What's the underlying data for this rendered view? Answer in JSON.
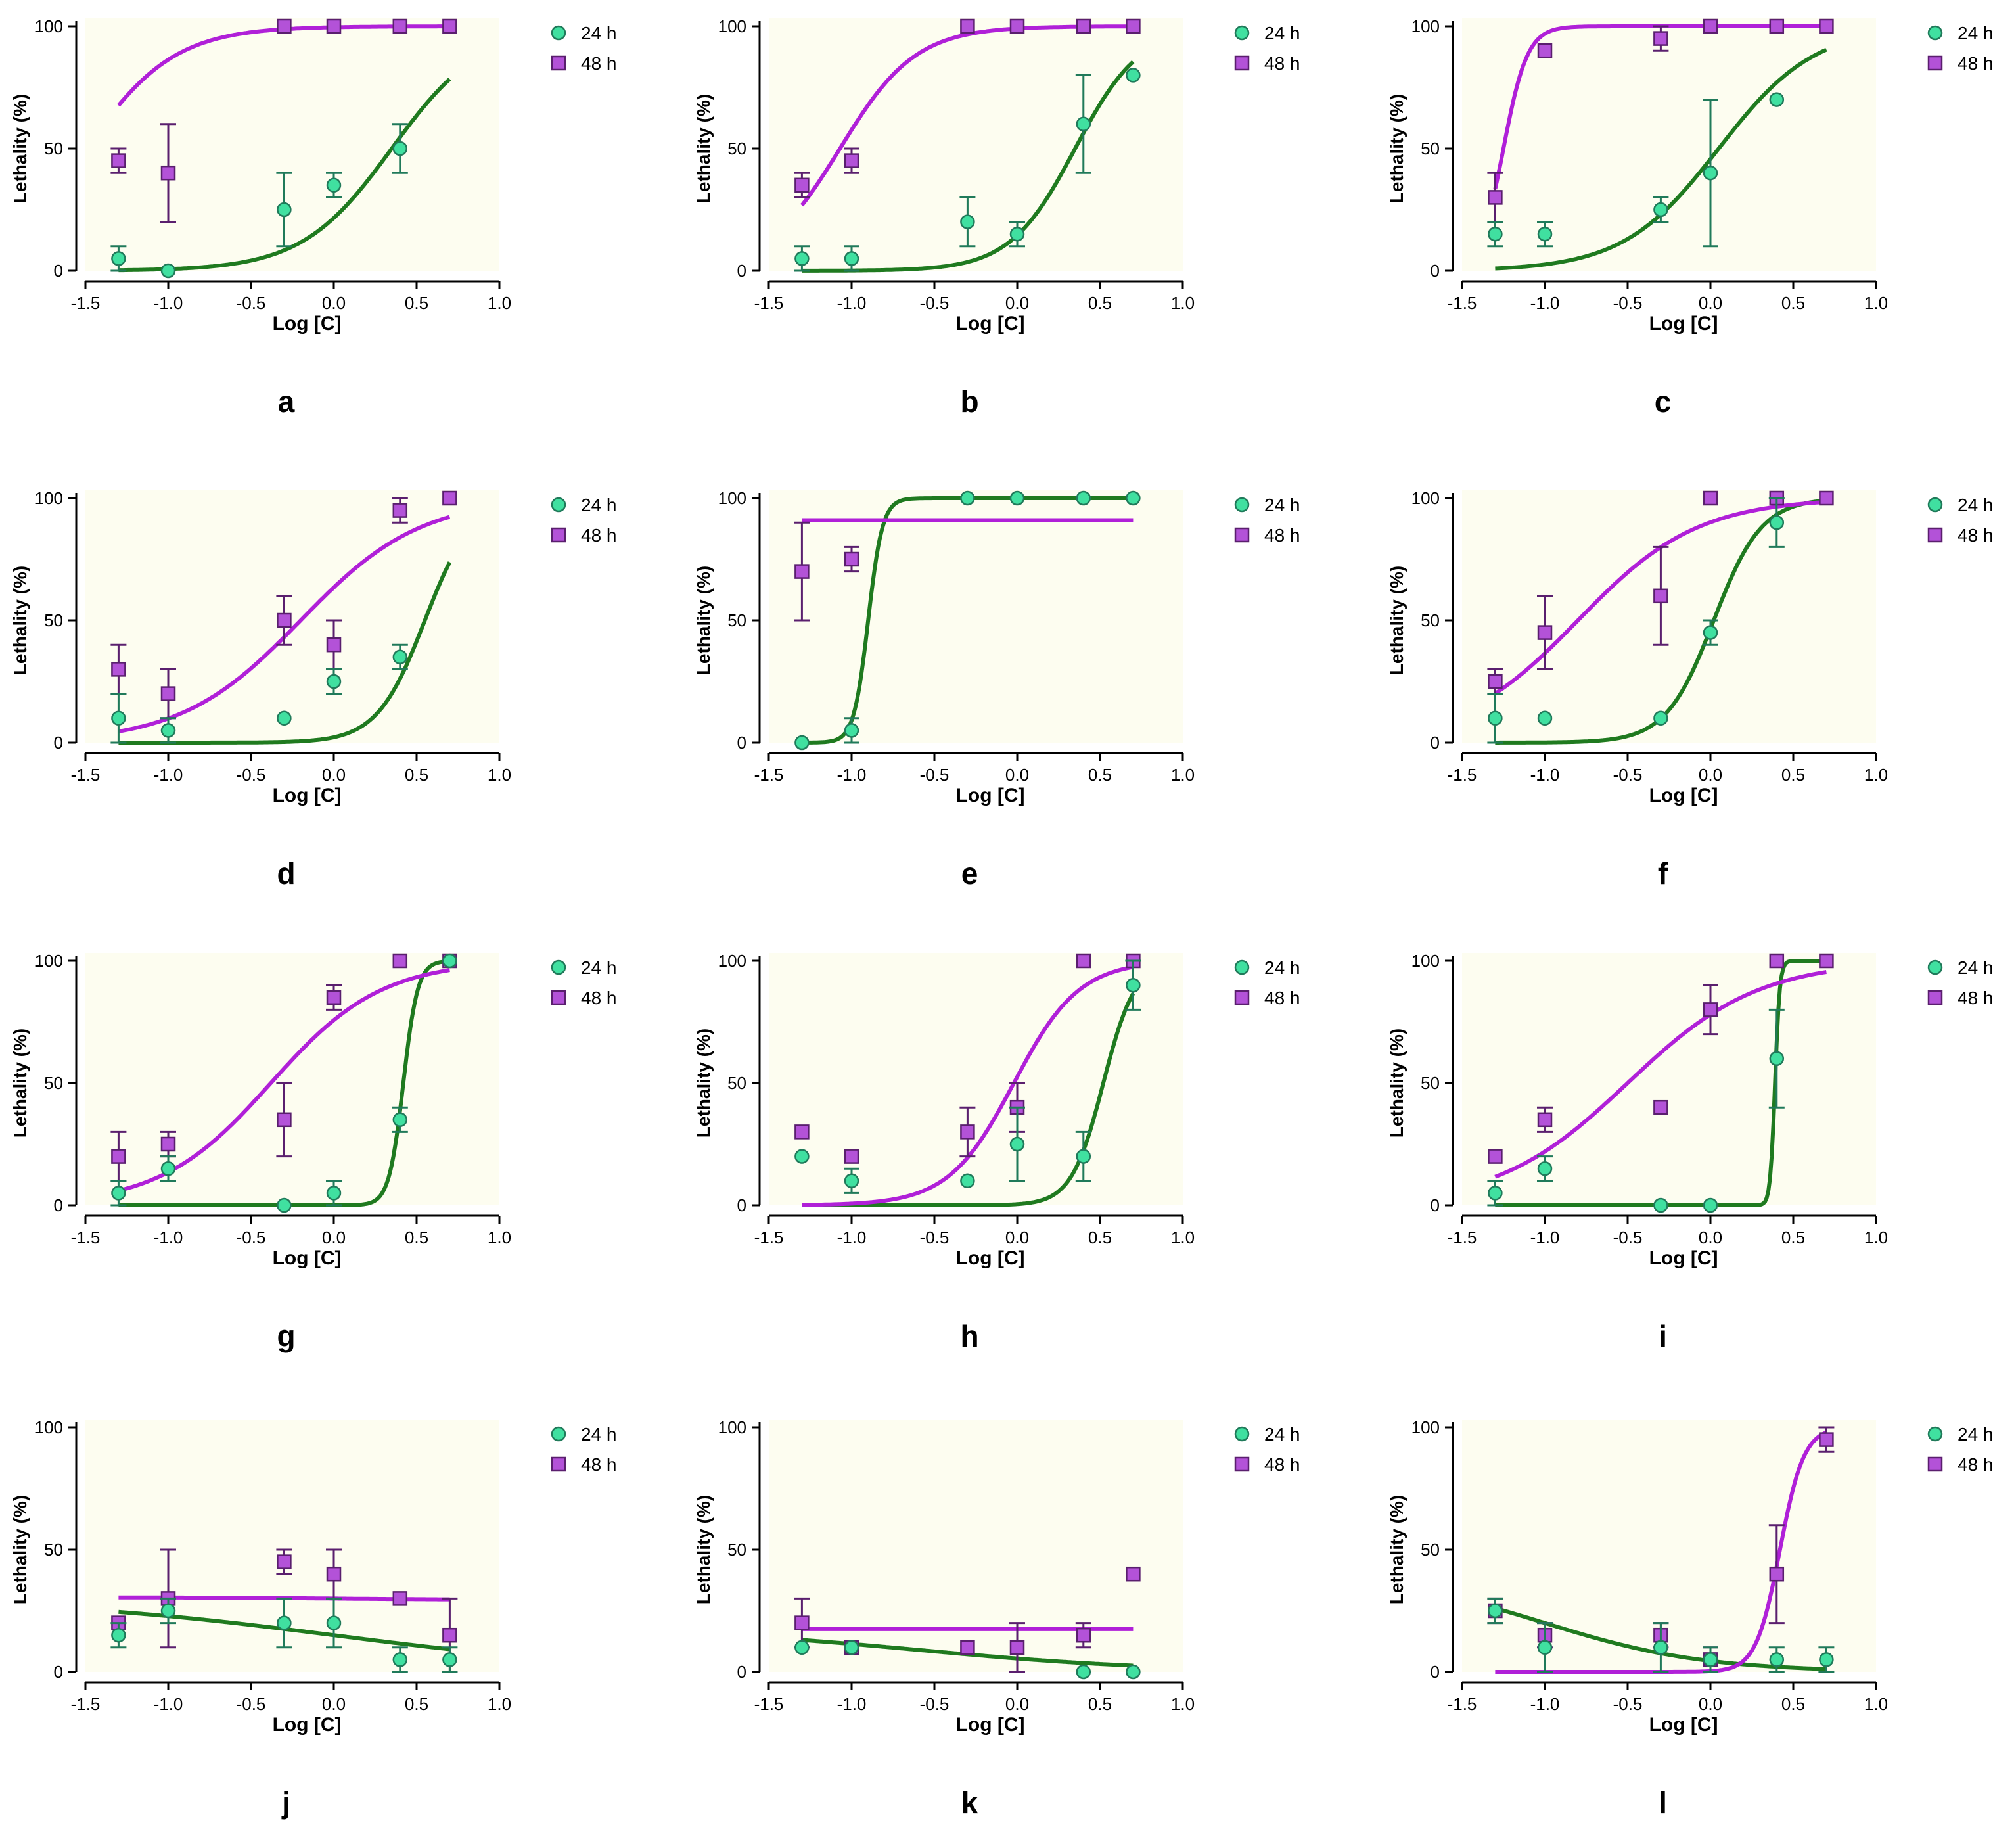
{
  "figure": {
    "legend_24h": "24 h",
    "legend_48h": "48 h"
  },
  "colors": {
    "plot_bg": "#fdfdf0",
    "series_24h_fill": "#40e0a0",
    "series_24h_edge": "#207a5a",
    "fit_24h": "#1f7a1f",
    "series_48h_fill": "#b352d8",
    "series_48h_edge": "#5a1f6e",
    "fit_48h": "#b020d8"
  },
  "chart_data": [
    {
      "panel": "a",
      "type": "scatter",
      "xlabel": "Log [C]",
      "ylabel": "Lethality (%)",
      "xlim": [
        -1.5,
        1.0
      ],
      "ylim": [
        0,
        100
      ],
      "xticks": [
        "-1.5",
        "-1.0",
        "-0.5",
        "0.0",
        "0.5",
        "1.0"
      ],
      "yticks": [
        "0",
        "50",
        "100"
      ],
      "series": [
        {
          "name": "24 h",
          "x": [
            -1.3,
            -1.0,
            -0.3,
            0.0,
            0.4
          ],
          "y": [
            5,
            0,
            25,
            35,
            50
          ],
          "err": [
            5,
            0,
            15,
            5,
            10
          ],
          "fit": {
            "bottom": 0,
            "top": 100,
            "logEC50": 0.35,
            "hill": 1.6
          }
        },
        {
          "name": "48 h",
          "x": [
            -1.3,
            -1.0,
            -0.3,
            0.0,
            0.4,
            0.7
          ],
          "y": [
            45,
            40,
            100,
            100,
            100,
            100
          ],
          "err": [
            5,
            20,
            0,
            0,
            0,
            0
          ],
          "fit": {
            "bottom": 0,
            "top": 100,
            "logEC50": -1.5,
            "hill": 1.6
          }
        }
      ]
    },
    {
      "panel": "b",
      "type": "scatter",
      "xlabel": "Log [C]",
      "ylabel": "Lethality (%)",
      "xlim": [
        -1.5,
        1.0
      ],
      "ylim": [
        0,
        100
      ],
      "xticks": [
        "-1.5",
        "-1.0",
        "-0.5",
        "0.0",
        "0.5",
        "1.0"
      ],
      "yticks": [
        "0",
        "50",
        "100"
      ],
      "series": [
        {
          "name": "24 h",
          "x": [
            -1.3,
            -1.0,
            -0.3,
            0.0,
            0.4,
            0.7
          ],
          "y": [
            5,
            5,
            20,
            15,
            60,
            80
          ],
          "err": [
            5,
            5,
            10,
            5,
            20,
            0
          ],
          "fit": {
            "bottom": 0,
            "top": 100,
            "logEC50": 0.35,
            "hill": 2.2
          }
        },
        {
          "name": "48 h",
          "x": [
            -1.3,
            -1.0,
            -0.3,
            0.0,
            0.4,
            0.7
          ],
          "y": [
            35,
            45,
            100,
            100,
            100,
            100
          ],
          "err": [
            5,
            5,
            0,
            0,
            0,
            0
          ],
          "fit": {
            "bottom": 0,
            "top": 100,
            "logEC50": -1.07,
            "hill": 1.9
          }
        }
      ]
    },
    {
      "panel": "c",
      "type": "scatter",
      "xlabel": "Log [C]",
      "ylabel": "Lethality (%)",
      "xlim": [
        -1.5,
        1.0
      ],
      "ylim": [
        0,
        100
      ],
      "xticks": [
        "-1.5",
        "-1.0",
        "-0.5",
        "0.0",
        "0.5",
        "1.0"
      ],
      "yticks": [
        "0",
        "50",
        "100"
      ],
      "series": [
        {
          "name": "24 h",
          "x": [
            -1.3,
            -1.0,
            -0.3,
            0.0,
            0.4
          ],
          "y": [
            15,
            15,
            25,
            40,
            70
          ],
          "err": [
            5,
            5,
            5,
            30,
            0
          ],
          "fit": {
            "bottom": 0,
            "top": 100,
            "logEC50": 0.05,
            "hill": 1.5
          }
        },
        {
          "name": "48 h",
          "x": [
            -1.3,
            -1.0,
            -0.3,
            0.0,
            0.4,
            0.7
          ],
          "y": [
            30,
            90,
            95,
            100,
            100,
            100
          ],
          "err": [
            10,
            0,
            5,
            0,
            0,
            0
          ],
          "fit": {
            "bottom": 0,
            "top": 100,
            "logEC50": -1.25,
            "hill": 6
          }
        }
      ]
    },
    {
      "panel": "d",
      "type": "scatter",
      "xlabel": "Log [C]",
      "ylabel": "Lethality (%)",
      "xlim": [
        -1.5,
        1.0
      ],
      "ylim": [
        0,
        100
      ],
      "xticks": [
        "-1.5",
        "-1.0",
        "-0.5",
        "0.0",
        "0.5",
        "1.0"
      ],
      "yticks": [
        "0",
        "50",
        "100"
      ],
      "series": [
        {
          "name": "24 h",
          "x": [
            -1.3,
            -1.0,
            -0.3,
            0.0,
            0.4
          ],
          "y": [
            10,
            5,
            10,
            25,
            35
          ],
          "err": [
            10,
            5,
            0,
            5,
            5
          ],
          "fit": {
            "bottom": 0,
            "top": 100,
            "logEC50": 0.55,
            "hill": 3
          }
        },
        {
          "name": "48 h",
          "x": [
            -1.3,
            -1.0,
            -0.3,
            0.0,
            0.4,
            0.7
          ],
          "y": [
            30,
            20,
            50,
            40,
            95,
            100
          ],
          "err": [
            10,
            10,
            10,
            10,
            5,
            0
          ],
          "fit": {
            "bottom": 0,
            "top": 100,
            "logEC50": -0.2,
            "hill": 1.2
          }
        }
      ]
    },
    {
      "panel": "e",
      "type": "scatter",
      "xlabel": "Log [C]",
      "ylabel": "Lethality (%)",
      "xlim": [
        -1.5,
        1.0
      ],
      "ylim": [
        0,
        100
      ],
      "xticks": [
        "-1.5",
        "-1.0",
        "-0.5",
        "0.0",
        "0.5",
        "1.0"
      ],
      "yticks": [
        "0",
        "50",
        "100"
      ],
      "series": [
        {
          "name": "24 h",
          "x": [
            -1.3,
            -1.0,
            -0.3,
            0.0,
            0.4,
            0.7
          ],
          "y": [
            0,
            5,
            100,
            100,
            100,
            100
          ],
          "err": [
            0,
            5,
            0,
            0,
            0,
            0
          ],
          "fit": {
            "bottom": 0,
            "top": 100,
            "logEC50": -0.9,
            "hill": 10
          }
        },
        {
          "name": "48 h",
          "x": [
            -1.3,
            -1.0
          ],
          "y": [
            70,
            75
          ],
          "err": [
            20,
            5
          ],
          "fit": {
            "bottom": 91,
            "top": 91,
            "logEC50": 0,
            "hill": 1
          }
        }
      ]
    },
    {
      "panel": "f",
      "type": "scatter",
      "xlabel": "Log [C]",
      "ylabel": "Lethality (%)",
      "xlim": [
        -1.5,
        1.0
      ],
      "ylim": [
        0,
        100
      ],
      "xticks": [
        "-1.5",
        "-1.0",
        "-0.5",
        "0.0",
        "0.5",
        "1.0"
      ],
      "yticks": [
        "0",
        "50",
        "100"
      ],
      "series": [
        {
          "name": "24 h",
          "x": [
            -1.3,
            -1.0,
            -0.3,
            0.0,
            0.4
          ],
          "y": [
            10,
            10,
            10,
            45,
            90
          ],
          "err": [
            10,
            0,
            0,
            5,
            10
          ],
          "fit": {
            "bottom": 0,
            "top": 100,
            "logEC50": 0.02,
            "hill": 3
          }
        },
        {
          "name": "48 h",
          "x": [
            -1.3,
            -1.0,
            -0.3,
            0.0,
            0.4,
            0.7
          ],
          "y": [
            25,
            45,
            60,
            100,
            100,
            100
          ],
          "err": [
            5,
            15,
            20,
            0,
            0,
            0
          ],
          "fit": {
            "bottom": 0,
            "top": 100,
            "logEC50": -0.8,
            "hill": 1.2
          }
        }
      ]
    },
    {
      "panel": "g",
      "type": "scatter",
      "xlabel": "Log [C]",
      "ylabel": "Lethality (%)",
      "xlim": [
        -1.5,
        1.0
      ],
      "ylim": [
        0,
        100
      ],
      "xticks": [
        "-1.5",
        "-1.0",
        "-0.5",
        "0.0",
        "0.5",
        "1.0"
      ],
      "yticks": [
        "0",
        "50",
        "100"
      ],
      "series": [
        {
          "name": "24 h",
          "x": [
            -1.3,
            -1.0,
            -0.3,
            0.0,
            0.4,
            0.7
          ],
          "y": [
            5,
            15,
            0,
            5,
            35,
            100
          ],
          "err": [
            5,
            5,
            0,
            5,
            5,
            0
          ],
          "fit": {
            "bottom": 0,
            "top": 100,
            "logEC50": 0.42,
            "hill": 10
          }
        },
        {
          "name": "48 h",
          "x": [
            -1.3,
            -1.0,
            -0.3,
            0.0,
            0.4,
            0.7
          ],
          "y": [
            20,
            25,
            35,
            85,
            100,
            100
          ],
          "err": [
            10,
            5,
            15,
            5,
            0,
            0
          ],
          "fit": {
            "bottom": 0,
            "top": 100,
            "logEC50": -0.38,
            "hill": 1.3
          }
        }
      ]
    },
    {
      "panel": "h",
      "type": "scatter",
      "xlabel": "Log [C]",
      "ylabel": "Lethality (%)",
      "xlim": [
        -1.5,
        1.0
      ],
      "ylim": [
        0,
        100
      ],
      "xticks": [
        "-1.5",
        "-1.0",
        "-0.5",
        "0.0",
        "0.5",
        "1.0"
      ],
      "yticks": [
        "0",
        "50",
        "100"
      ],
      "series": [
        {
          "name": "24 h",
          "x": [
            -1.3,
            -1.0,
            -0.3,
            0.0,
            0.4,
            0.7
          ],
          "y": [
            20,
            10,
            10,
            25,
            20,
            90
          ],
          "err": [
            0,
            5,
            0,
            15,
            10,
            10
          ],
          "fit": {
            "bottom": 0,
            "top": 100,
            "logEC50": 0.52,
            "hill": 4.5
          }
        },
        {
          "name": "48 h",
          "x": [
            -1.3,
            -1.0,
            -0.3,
            0.0,
            0.4,
            0.7
          ],
          "y": [
            30,
            20,
            30,
            40,
            100,
            100
          ],
          "err": [
            0,
            0,
            10,
            10,
            0,
            0
          ],
          "fit": {
            "bottom": 0,
            "top": 100,
            "logEC50": -0.02,
            "hill": 2.2
          }
        }
      ]
    },
    {
      "panel": "i",
      "type": "scatter",
      "xlabel": "Log [C]",
      "ylabel": "Lethality (%)",
      "xlim": [
        -1.5,
        1.0
      ],
      "ylim": [
        0,
        100
      ],
      "xticks": [
        "-1.5",
        "-1.0",
        "-0.5",
        "0.0",
        "0.5",
        "1.0"
      ],
      "yticks": [
        "0",
        "50",
        "100"
      ],
      "series": [
        {
          "name": "24 h",
          "x": [
            -1.3,
            -1.0,
            -0.3,
            0.0,
            0.4
          ],
          "y": [
            5,
            15,
            0,
            0,
            60
          ],
          "err": [
            5,
            5,
            0,
            0,
            20
          ],
          "fit": {
            "bottom": 0,
            "top": 100,
            "logEC50": 0.39,
            "hill": 30
          }
        },
        {
          "name": "48 h",
          "x": [
            -1.3,
            -1.0,
            -0.3,
            0.0,
            0.4,
            0.7
          ],
          "y": [
            20,
            35,
            40,
            80,
            100,
            100
          ],
          "err": [
            0,
            5,
            0,
            10,
            0,
            0
          ],
          "fit": {
            "bottom": 0,
            "top": 100,
            "logEC50": -0.5,
            "hill": 1.1
          }
        }
      ]
    },
    {
      "panel": "j",
      "type": "scatter",
      "xlabel": "Log [C]",
      "ylabel": "Lethality (%)",
      "xlim": [
        -1.5,
        1.0
      ],
      "ylim": [
        0,
        100
      ],
      "xticks": [
        "-1.5",
        "-1.0",
        "-0.5",
        "0.0",
        "0.5",
        "1.0"
      ],
      "yticks": [
        "0",
        "50",
        "100"
      ],
      "series": [
        {
          "name": "24 h",
          "x": [
            -1.3,
            -1.0,
            -0.3,
            0.0,
            0.4,
            0.7
          ],
          "y": [
            15,
            25,
            20,
            20,
            5,
            5
          ],
          "err": [
            5,
            5,
            10,
            10,
            5,
            5
          ],
          "fit": {
            "bottom": 0,
            "top": 30,
            "logEC50": 0.0,
            "hill": -0.5
          }
        },
        {
          "name": "48 h",
          "x": [
            -1.3,
            -1.0,
            -0.3,
            0.0,
            0.4,
            0.7
          ],
          "y": [
            20,
            30,
            45,
            40,
            30,
            15
          ],
          "err": [
            0,
            20,
            5,
            10,
            0,
            15
          ],
          "fit": {
            "bottom": 30.5,
            "top": 29.5,
            "logEC50": 0,
            "hill": 1
          }
        }
      ]
    },
    {
      "panel": "k",
      "type": "scatter",
      "xlabel": "Log [C]",
      "ylabel": "Lethality (%)",
      "xlim": [
        -1.5,
        1.0
      ],
      "ylim": [
        0,
        100
      ],
      "xticks": [
        "-1.5",
        "-1.0",
        "-0.5",
        "0.0",
        "0.5",
        "1.0"
      ],
      "yticks": [
        "0",
        "50",
        "100"
      ],
      "series": [
        {
          "name": "24 h",
          "x": [
            -1.3,
            -1.0,
            0.4,
            0.7
          ],
          "y": [
            10,
            10,
            0,
            0
          ],
          "err": [
            0,
            0,
            0,
            0
          ],
          "fit": {
            "bottom": 0,
            "top": 18,
            "logEC50": -0.6,
            "hill": -0.6
          }
        },
        {
          "name": "48 h",
          "x": [
            -1.3,
            -1.0,
            -0.3,
            0.0,
            0.4,
            0.7
          ],
          "y": [
            20,
            10,
            10,
            10,
            15,
            40
          ],
          "err": [
            10,
            0,
            0,
            10,
            5,
            0
          ],
          "fit": {
            "bottom": 17.5,
            "top": 17.5,
            "logEC50": 0,
            "hill": 1
          }
        }
      ]
    },
    {
      "panel": "l",
      "type": "scatter",
      "xlabel": "Log [C]",
      "ylabel": "Lethality (%)",
      "xlim": [
        -1.5,
        1.0
      ],
      "ylim": [
        0,
        100
      ],
      "xticks": [
        "-1.5",
        "-1.0",
        "-0.5",
        "0.0",
        "0.5",
        "1.0"
      ],
      "yticks": [
        "0",
        "50",
        "100"
      ],
      "series": [
        {
          "name": "24 h",
          "x": [
            -1.3,
            -1.0,
            -0.3,
            0.0,
            0.4,
            0.7
          ],
          "y": [
            25,
            10,
            10,
            5,
            5,
            5
          ],
          "err": [
            5,
            10,
            10,
            5,
            5,
            5
          ],
          "fit": {
            "bottom": 0,
            "top": 40,
            "logEC50": -1.0,
            "hill": -0.9
          }
        },
        {
          "name": "48 h",
          "x": [
            -1.3,
            -1.0,
            -0.3,
            0.0,
            0.4,
            0.7
          ],
          "y": [
            25,
            15,
            15,
            5,
            40,
            95
          ],
          "err": [
            5,
            5,
            5,
            5,
            20,
            5
          ],
          "fit": {
            "bottom": 0,
            "top": 100,
            "logEC50": 0.42,
            "hill": 6
          }
        }
      ]
    }
  ]
}
